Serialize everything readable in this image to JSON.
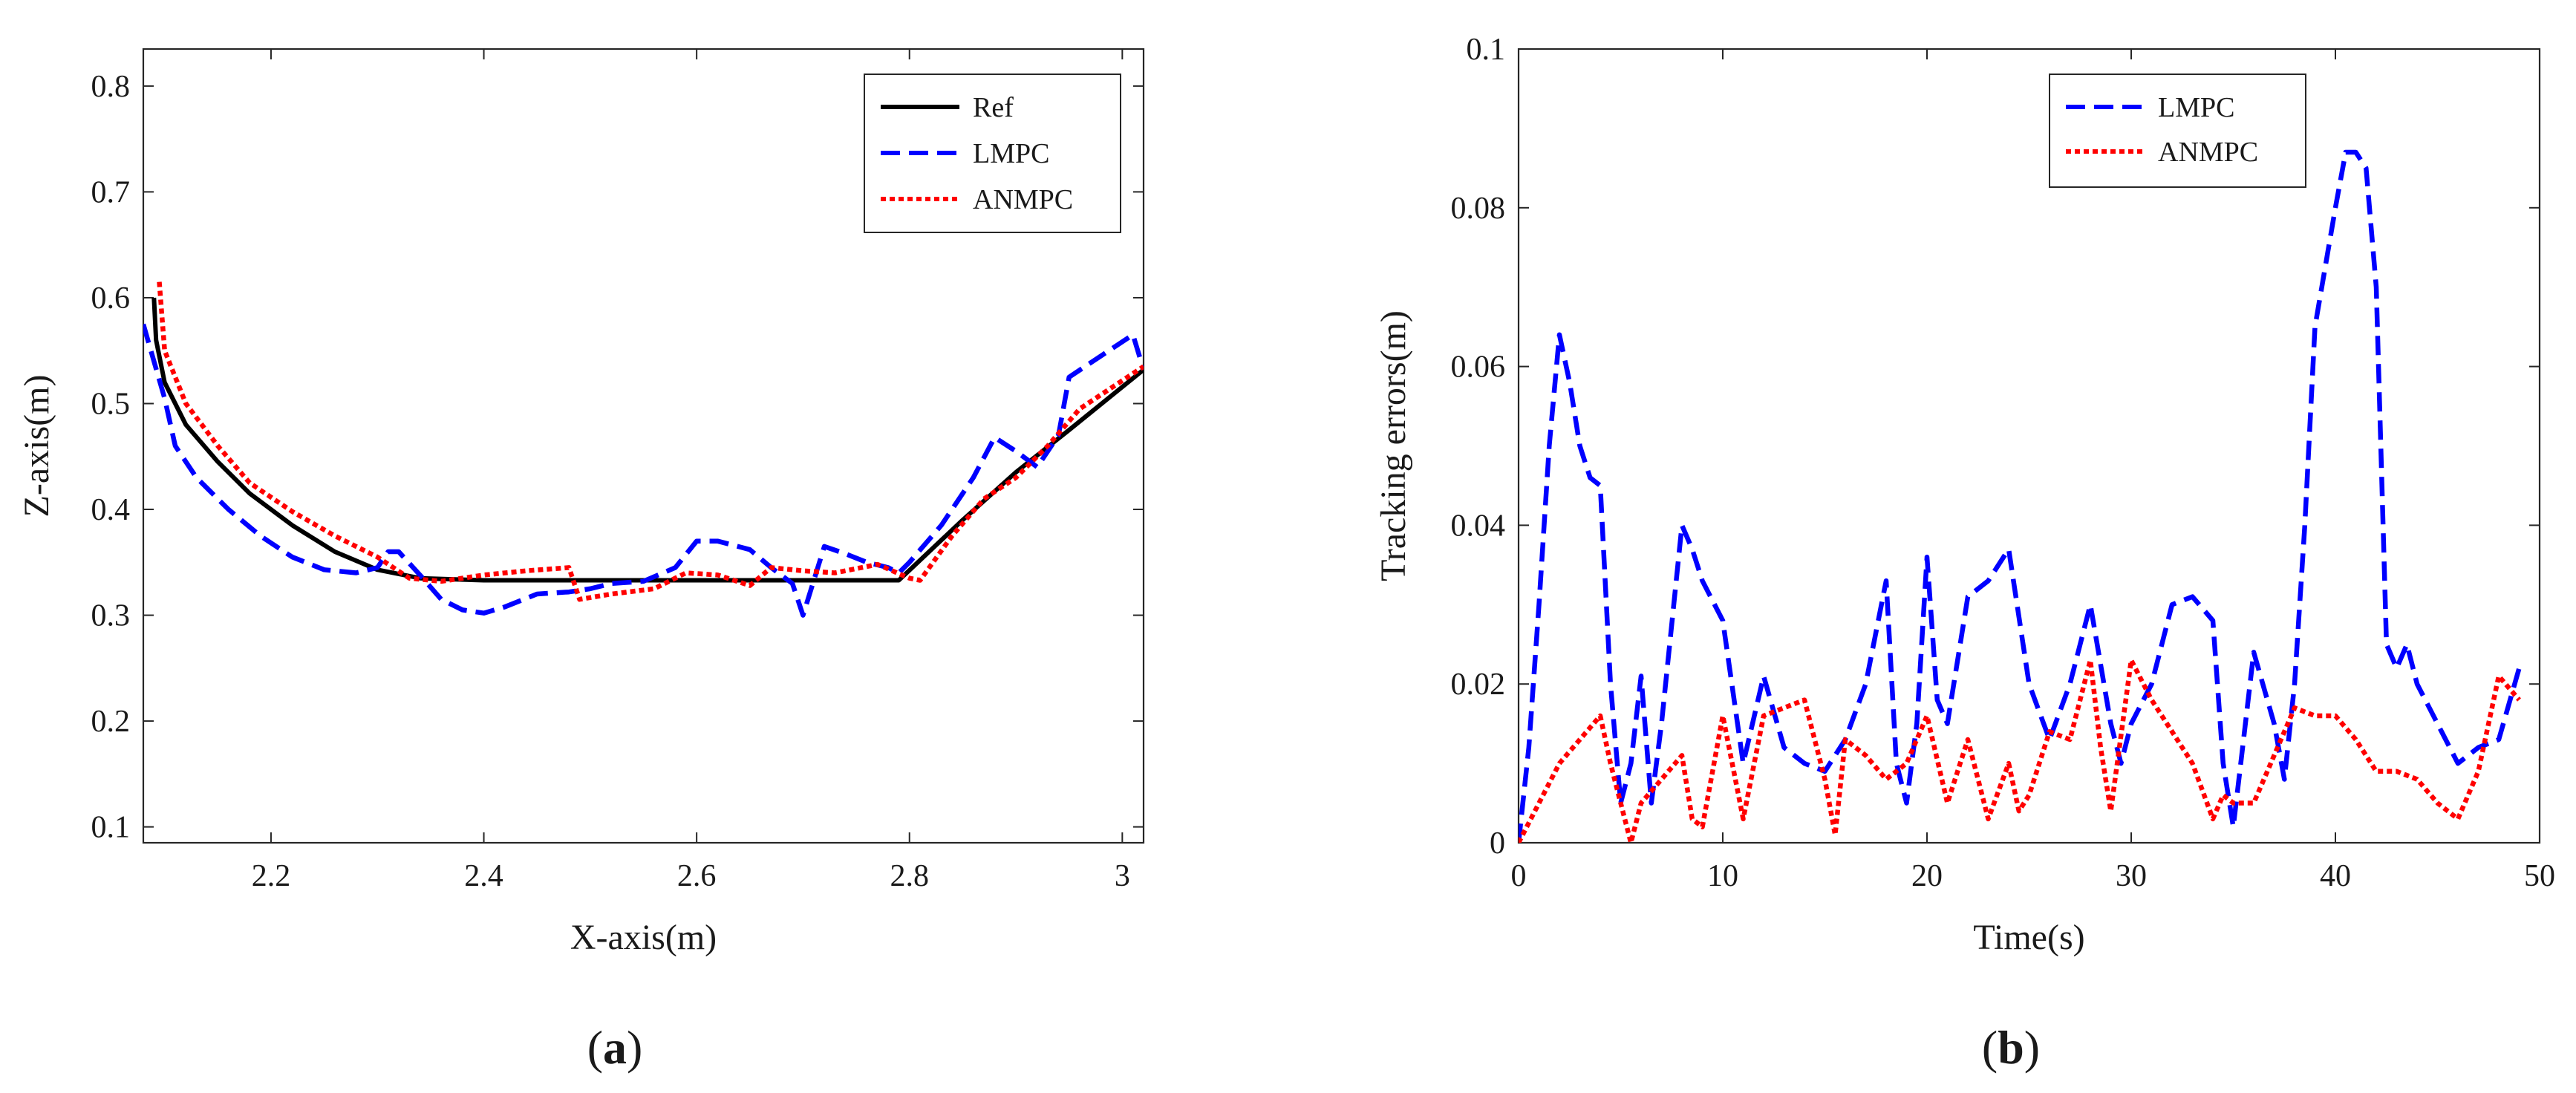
{
  "chart_data": [
    {
      "type": "line",
      "xlabel": "X-axis(m)",
      "ylabel": "Z-axis(m)",
      "xlim": [
        2.08,
        3.02
      ],
      "ylim": [
        0.085,
        0.835
      ],
      "xticks": [
        2.2,
        2.4,
        2.6,
        2.8,
        3
      ],
      "xtick_labels": [
        "2.2",
        "2.4",
        "2.6",
        "2.8",
        "3"
      ],
      "yticks": [
        0.1,
        0.2,
        0.3,
        0.4,
        0.5,
        0.6,
        0.7,
        0.8
      ],
      "ytick_labels": [
        "0.1",
        "0.2",
        "0.3",
        "0.4",
        "0.5",
        "0.6",
        "0.7",
        "0.8"
      ],
      "legend_position": "top-right",
      "grid": false,
      "series": [
        {
          "name": "Ref",
          "color": "#000000",
          "style": "solid",
          "points": [
            [
              2.09,
              0.6
            ],
            [
              2.092,
              0.56
            ],
            [
              2.1,
              0.52
            ],
            [
              2.12,
              0.48
            ],
            [
              2.15,
              0.445
            ],
            [
              2.18,
              0.415
            ],
            [
              2.22,
              0.385
            ],
            [
              2.26,
              0.36
            ],
            [
              2.3,
              0.343
            ],
            [
              2.34,
              0.335
            ],
            [
              2.4,
              0.333
            ],
            [
              2.5,
              0.333
            ],
            [
              2.6,
              0.333
            ],
            [
              2.7,
              0.333
            ],
            [
              2.79,
              0.333
            ],
            [
              2.85,
              0.39
            ],
            [
              2.9,
              0.435
            ],
            [
              2.95,
              0.475
            ],
            [
              3.02,
              0.532
            ]
          ]
        },
        {
          "name": "LMPC",
          "color": "#0000ff",
          "style": "dashed",
          "points": [
            [
              2.08,
              0.575
            ],
            [
              2.09,
              0.54
            ],
            [
              2.1,
              0.505
            ],
            [
              2.11,
              0.46
            ],
            [
              2.13,
              0.43
            ],
            [
              2.16,
              0.4
            ],
            [
              2.19,
              0.375
            ],
            [
              2.22,
              0.355
            ],
            [
              2.25,
              0.343
            ],
            [
              2.28,
              0.34
            ],
            [
              2.3,
              0.345
            ],
            [
              2.31,
              0.36
            ],
            [
              2.32,
              0.36
            ],
            [
              2.34,
              0.338
            ],
            [
              2.36,
              0.315
            ],
            [
              2.38,
              0.305
            ],
            [
              2.4,
              0.302
            ],
            [
              2.42,
              0.308
            ],
            [
              2.45,
              0.32
            ],
            [
              2.48,
              0.322
            ],
            [
              2.5,
              0.325
            ],
            [
              2.52,
              0.33
            ],
            [
              2.55,
              0.332
            ],
            [
              2.58,
              0.345
            ],
            [
              2.6,
              0.37
            ],
            [
              2.62,
              0.37
            ],
            [
              2.65,
              0.362
            ],
            [
              2.67,
              0.345
            ],
            [
              2.69,
              0.33
            ],
            [
              2.7,
              0.3
            ],
            [
              2.72,
              0.365
            ],
            [
              2.74,
              0.358
            ],
            [
              2.76,
              0.35
            ],
            [
              2.78,
              0.345
            ],
            [
              2.79,
              0.34
            ],
            [
              2.8,
              0.35
            ],
            [
              2.83,
              0.385
            ],
            [
              2.86,
              0.43
            ],
            [
              2.88,
              0.468
            ],
            [
              2.9,
              0.455
            ],
            [
              2.92,
              0.44
            ],
            [
              2.94,
              0.47
            ],
            [
              2.95,
              0.525
            ],
            [
              2.98,
              0.545
            ],
            [
              3.01,
              0.565
            ],
            [
              3.02,
              0.532
            ]
          ]
        },
        {
          "name": "ANMPC",
          "color": "#ff0000",
          "style": "dotted",
          "points": [
            [
              2.095,
              0.615
            ],
            [
              2.1,
              0.55
            ],
            [
              2.12,
              0.5
            ],
            [
              2.15,
              0.46
            ],
            [
              2.18,
              0.425
            ],
            [
              2.22,
              0.398
            ],
            [
              2.26,
              0.375
            ],
            [
              2.3,
              0.355
            ],
            [
              2.33,
              0.335
            ],
            [
              2.36,
              0.332
            ],
            [
              2.4,
              0.338
            ],
            [
              2.44,
              0.342
            ],
            [
              2.48,
              0.345
            ],
            [
              2.49,
              0.315
            ],
            [
              2.52,
              0.32
            ],
            [
              2.56,
              0.325
            ],
            [
              2.59,
              0.34
            ],
            [
              2.62,
              0.338
            ],
            [
              2.65,
              0.328
            ],
            [
              2.67,
              0.345
            ],
            [
              2.7,
              0.342
            ],
            [
              2.73,
              0.34
            ],
            [
              2.77,
              0.348
            ],
            [
              2.8,
              0.335
            ],
            [
              2.81,
              0.333
            ],
            [
              2.84,
              0.375
            ],
            [
              2.87,
              0.41
            ],
            [
              2.9,
              0.43
            ],
            [
              2.93,
              0.46
            ],
            [
              2.96,
              0.495
            ],
            [
              2.99,
              0.515
            ],
            [
              3.02,
              0.535
            ]
          ]
        }
      ]
    },
    {
      "type": "line",
      "xlabel": "Time(s)",
      "ylabel": "Tracking errors(m)",
      "xlim": [
        0,
        50
      ],
      "ylim": [
        0,
        0.1
      ],
      "xticks": [
        0,
        10,
        20,
        30,
        40,
        50
      ],
      "xtick_labels": [
        "0",
        "10",
        "20",
        "30",
        "40",
        "50"
      ],
      "yticks": [
        0,
        0.02,
        0.04,
        0.06,
        0.08,
        0.1
      ],
      "ytick_labels": [
        "0",
        "0.02",
        "0.04",
        "0.06",
        "0.08",
        "0.1"
      ],
      "legend_position": "top-center",
      "grid": false,
      "series": [
        {
          "name": "LMPC",
          "color": "#0000ff",
          "style": "dashed",
          "points": [
            [
              0,
              0.0
            ],
            [
              0.5,
              0.012
            ],
            [
              1,
              0.03
            ],
            [
              1.5,
              0.05
            ],
            [
              2,
              0.064
            ],
            [
              2.5,
              0.058
            ],
            [
              3,
              0.05
            ],
            [
              3.5,
              0.046
            ],
            [
              4,
              0.045
            ],
            [
              4.5,
              0.02
            ],
            [
              5,
              0.005
            ],
            [
              5.5,
              0.01
            ],
            [
              6,
              0.021
            ],
            [
              6.5,
              0.005
            ],
            [
              7,
              0.015
            ],
            [
              8,
              0.04
            ],
            [
              8.5,
              0.037
            ],
            [
              9,
              0.033
            ],
            [
              10,
              0.028
            ],
            [
              11,
              0.01
            ],
            [
              12,
              0.021
            ],
            [
              13,
              0.012
            ],
            [
              14,
              0.01
            ],
            [
              15,
              0.009
            ],
            [
              16,
              0.013
            ],
            [
              17,
              0.02
            ],
            [
              18,
              0.033
            ],
            [
              18.5,
              0.01
            ],
            [
              19,
              0.005
            ],
            [
              19.5,
              0.015
            ],
            [
              20,
              0.036
            ],
            [
              20.5,
              0.018
            ],
            [
              21,
              0.015
            ],
            [
              22,
              0.031
            ],
            [
              23,
              0.033
            ],
            [
              24,
              0.037
            ],
            [
              25,
              0.02
            ],
            [
              26,
              0.013
            ],
            [
              27,
              0.02
            ],
            [
              28,
              0.03
            ],
            [
              29,
              0.015
            ],
            [
              29.5,
              0.01
            ],
            [
              30,
              0.015
            ],
            [
              31,
              0.02
            ],
            [
              32,
              0.03
            ],
            [
              33,
              0.031
            ],
            [
              34,
              0.028
            ],
            [
              34.5,
              0.01
            ],
            [
              35,
              0.002
            ],
            [
              35.5,
              0.013
            ],
            [
              36,
              0.024
            ],
            [
              37,
              0.015
            ],
            [
              37.5,
              0.008
            ],
            [
              38,
              0.02
            ],
            [
              38.5,
              0.04
            ],
            [
              39,
              0.065
            ],
            [
              40,
              0.08
            ],
            [
              40.5,
              0.087
            ],
            [
              41,
              0.087
            ],
            [
              41.5,
              0.085
            ],
            [
              42,
              0.07
            ],
            [
              42.5,
              0.025
            ],
            [
              43,
              0.022
            ],
            [
              43.5,
              0.025
            ],
            [
              44,
              0.02
            ],
            [
              45,
              0.015
            ],
            [
              46,
              0.01
            ],
            [
              47,
              0.012
            ],
            [
              48,
              0.013
            ],
            [
              49,
              0.022
            ]
          ]
        },
        {
          "name": "ANMPC",
          "color": "#ff0000",
          "style": "dotted",
          "points": [
            [
              0,
              0.0
            ],
            [
              1,
              0.005
            ],
            [
              2,
              0.01
            ],
            [
              3,
              0.013
            ],
            [
              4,
              0.016
            ],
            [
              4.5,
              0.01
            ],
            [
              5,
              0.005
            ],
            [
              5.5,
              0.0
            ],
            [
              6,
              0.005
            ],
            [
              7,
              0.008
            ],
            [
              8,
              0.011
            ],
            [
              8.5,
              0.003
            ],
            [
              9,
              0.002
            ],
            [
              10,
              0.016
            ],
            [
              11,
              0.003
            ],
            [
              12,
              0.016
            ],
            [
              13,
              0.017
            ],
            [
              14,
              0.018
            ],
            [
              15,
              0.008
            ],
            [
              15.5,
              0.001
            ],
            [
              16,
              0.013
            ],
            [
              17,
              0.011
            ],
            [
              18,
              0.008
            ],
            [
              19,
              0.01
            ],
            [
              20,
              0.016
            ],
            [
              21,
              0.005
            ],
            [
              22,
              0.013
            ],
            [
              23,
              0.003
            ],
            [
              24,
              0.01
            ],
            [
              24.5,
              0.004
            ],
            [
              25,
              0.006
            ],
            [
              26,
              0.014
            ],
            [
              27,
              0.013
            ],
            [
              28,
              0.023
            ],
            [
              28.5,
              0.012
            ],
            [
              29,
              0.004
            ],
            [
              30,
              0.023
            ],
            [
              31,
              0.018
            ],
            [
              32,
              0.014
            ],
            [
              33,
              0.01
            ],
            [
              34,
              0.003
            ],
            [
              34.5,
              0.006
            ],
            [
              35,
              0.005
            ],
            [
              36,
              0.005
            ],
            [
              37,
              0.011
            ],
            [
              38,
              0.017
            ],
            [
              39,
              0.016
            ],
            [
              40,
              0.016
            ],
            [
              41,
              0.013
            ],
            [
              42,
              0.009
            ],
            [
              43,
              0.009
            ],
            [
              44,
              0.008
            ],
            [
              45,
              0.005
            ],
            [
              46,
              0.003
            ],
            [
              47,
              0.009
            ],
            [
              48,
              0.021
            ],
            [
              49,
              0.018
            ]
          ]
        }
      ]
    }
  ],
  "panels": {
    "a": {
      "open": "(",
      "letter": "a",
      "close": ")"
    },
    "b": {
      "open": "(",
      "letter": "b",
      "close": ")"
    }
  }
}
